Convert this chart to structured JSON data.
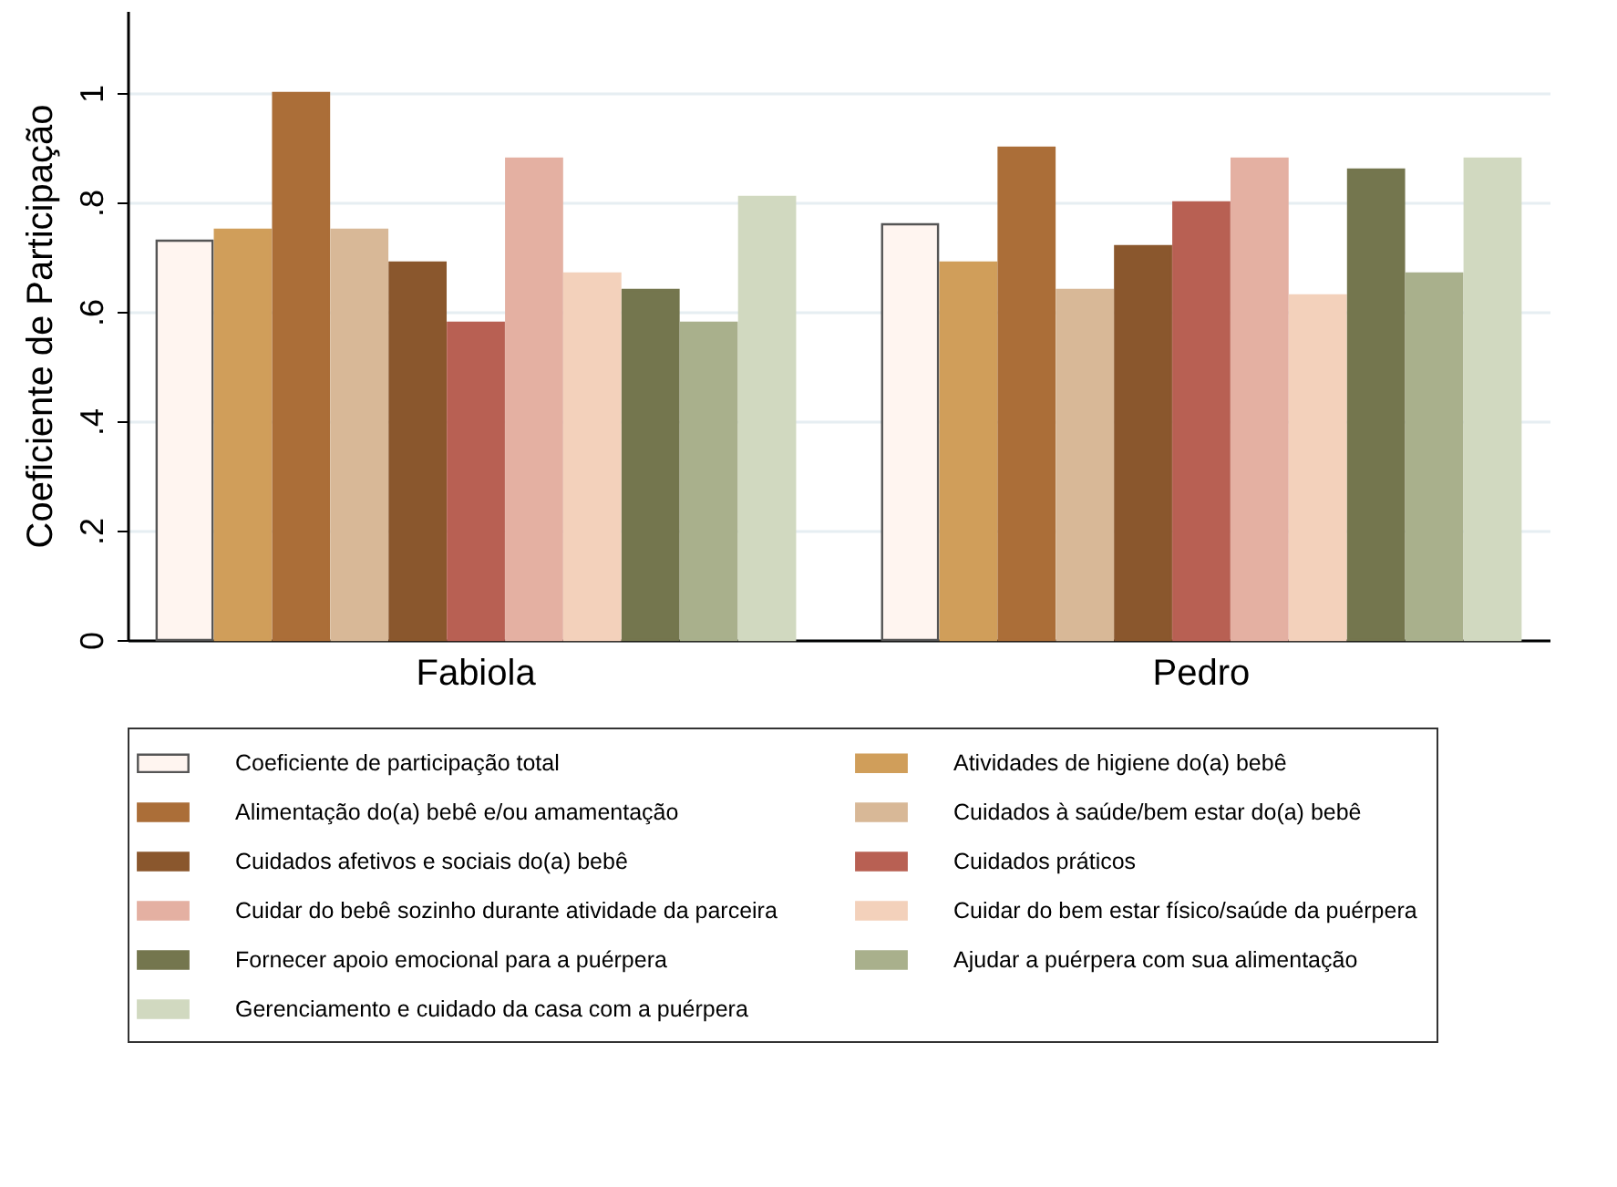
{
  "chart_data": {
    "type": "bar",
    "ylabel": "Coeficiente de Participação",
    "categories": [
      "Fabiola",
      "Pedro"
    ],
    "series": [
      {
        "name": "Coeficiente de participação total",
        "color": "#fff5f0",
        "values": [
          0.73,
          0.76
        ]
      },
      {
        "name": "Atividades de higiene do(a) bebê",
        "color": "#d09e5a",
        "values": [
          0.75,
          0.69
        ]
      },
      {
        "name": "Alimentação do(a) bebê e/ou amamentação",
        "color": "#ab6e38",
        "values": [
          1.0,
          0.9
        ]
      },
      {
        "name": "Cuidados à saúde/bem estar do(a) bebê",
        "color": "#d8b897",
        "values": [
          0.75,
          0.64
        ]
      },
      {
        "name": "Cuidados afetivos e sociais do(a) bebê",
        "color": "#8a572d",
        "values": [
          0.69,
          0.72
        ]
      },
      {
        "name": "Cuidados práticos",
        "color": "#b86053",
        "values": [
          0.58,
          0.8
        ]
      },
      {
        "name": "Cuidar do bebê sozinho durante atividade da parceira",
        "color": "#e4b0a2",
        "values": [
          0.88,
          0.88
        ]
      },
      {
        "name": "Cuidar do bem estar físico/saúde da puérpera",
        "color": "#f3d1bb",
        "values": [
          0.67,
          0.63
        ]
      },
      {
        "name": "Fornecer apoio emocional para a puérpera",
        "color": "#74764e",
        "values": [
          0.64,
          0.86
        ]
      },
      {
        "name": "Ajudar a puérpera com sua alimentação",
        "color": "#a9b08c",
        "values": [
          0.58,
          0.67
        ]
      },
      {
        "name": "Gerenciamento e cuidado da casa com a puérpera",
        "color": "#d1d9c0",
        "values": [
          0.81,
          0.88
        ]
      }
    ],
    "ylim": [
      0,
      1.15
    ],
    "yticks": [
      0,
      {
        "value": 0.2,
        "label": ".2"
      },
      {
        "value": 0.4,
        "label": ".4"
      },
      {
        "value": 0.6,
        "label": ".6"
      },
      {
        "value": 0.8,
        "label": ".8"
      },
      1
    ],
    "grid": "y",
    "legend": "bottom"
  }
}
